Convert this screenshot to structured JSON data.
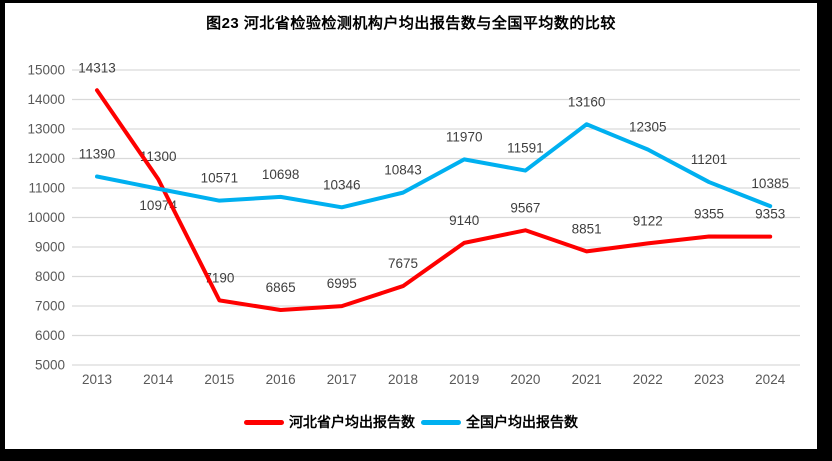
{
  "page": {
    "title": "图23  河北省检验检测机构户均出报告数与全国平均数的比较"
  },
  "chart_data": {
    "type": "line",
    "title": "图23  河北省检验检测机构户均出报告数与全国平均数的比较",
    "categories": [
      "2013",
      "2014",
      "2015",
      "2016",
      "2017",
      "2018",
      "2019",
      "2020",
      "2021",
      "2022",
      "2023",
      "2024"
    ],
    "series": [
      {
        "name": "河北省户均出报告数",
        "color": "#fe0000",
        "values": [
          14313,
          11300,
          7190,
          6865,
          6995,
          7675,
          9140,
          9567,
          8851,
          9122,
          9355,
          9353
        ],
        "label_positions": [
          "above",
          "above",
          "above",
          "above",
          "above",
          "above",
          "above",
          "above",
          "above",
          "above",
          "above",
          "above"
        ]
      },
      {
        "name": "全国户均出报告数",
        "color": "#00b0f0",
        "values": [
          11390,
          10974,
          10571,
          10698,
          10346,
          10843,
          11970,
          11591,
          13160,
          12305,
          11201,
          10385
        ],
        "label_positions": [
          "above",
          "below",
          "above",
          "above",
          "above",
          "above",
          "above",
          "above",
          "above",
          "above",
          "above",
          "above"
        ]
      }
    ],
    "ylim": [
      5000,
      15000
    ],
    "ytick_step": 1000,
    "yticks": [
      15000,
      14000,
      13000,
      12000,
      11000,
      10000,
      9000,
      8000,
      7000,
      6000,
      5000
    ],
    "grid": true,
    "data_labels": true,
    "legend_position": "bottom"
  },
  "colors": {
    "grid": "#d9d9d9",
    "tick_text": "#595959",
    "data_label_text": "#3f3f3f",
    "frame": "#000000",
    "background": "#ffffff"
  }
}
